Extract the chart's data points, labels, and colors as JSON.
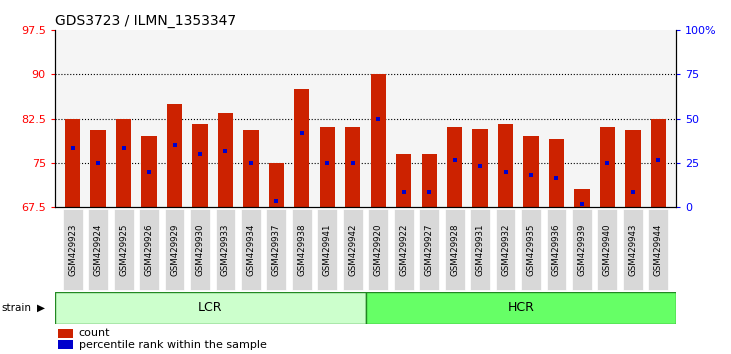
{
  "title": "GDS3723 / ILMN_1353347",
  "samples": [
    "GSM429923",
    "GSM429924",
    "GSM429925",
    "GSM429926",
    "GSM429929",
    "GSM429930",
    "GSM429933",
    "GSM429934",
    "GSM429937",
    "GSM429938",
    "GSM429941",
    "GSM429942",
    "GSM429920",
    "GSM429922",
    "GSM429927",
    "GSM429928",
    "GSM429931",
    "GSM429932",
    "GSM429935",
    "GSM429936",
    "GSM429939",
    "GSM429940",
    "GSM429943",
    "GSM429944"
  ],
  "bar_heights": [
    82.5,
    80.5,
    82.5,
    79.5,
    85.0,
    81.5,
    83.5,
    80.5,
    75.0,
    87.5,
    81.0,
    81.0,
    90.0,
    76.5,
    76.5,
    81.0,
    80.8,
    81.5,
    79.5,
    79.0,
    70.5,
    81.0,
    80.5,
    82.5
  ],
  "percentile_ranks": [
    77.5,
    75.0,
    77.5,
    73.5,
    78.0,
    76.5,
    77.0,
    75.0,
    68.5,
    80.0,
    75.0,
    75.0,
    82.5,
    70.0,
    70.0,
    75.5,
    74.5,
    73.5,
    73.0,
    72.5,
    68.0,
    75.0,
    70.0,
    75.5
  ],
  "lcr_count": 12,
  "lcr_color": "#ccffcc",
  "hcr_color": "#66ff66",
  "bar_color": "#cc2200",
  "marker_color": "#0000cc",
  "ymin": 67.5,
  "ymax": 97.5,
  "yticks": [
    67.5,
    75.0,
    82.5,
    90.0,
    97.5
  ],
  "ytick_labels": [
    "67.5",
    "75",
    "82.5",
    "90",
    "97.5"
  ],
  "right_yticks": [
    0,
    25,
    50,
    75,
    100
  ],
  "right_ytick_labels": [
    "0",
    "25",
    "50",
    "75",
    "100%"
  ],
  "grid_lines": [
    75.0,
    82.5,
    90.0
  ],
  "bar_width": 0.6,
  "plot_bg": "#f0f0f0",
  "tick_label_bg": "#d8d8d8"
}
